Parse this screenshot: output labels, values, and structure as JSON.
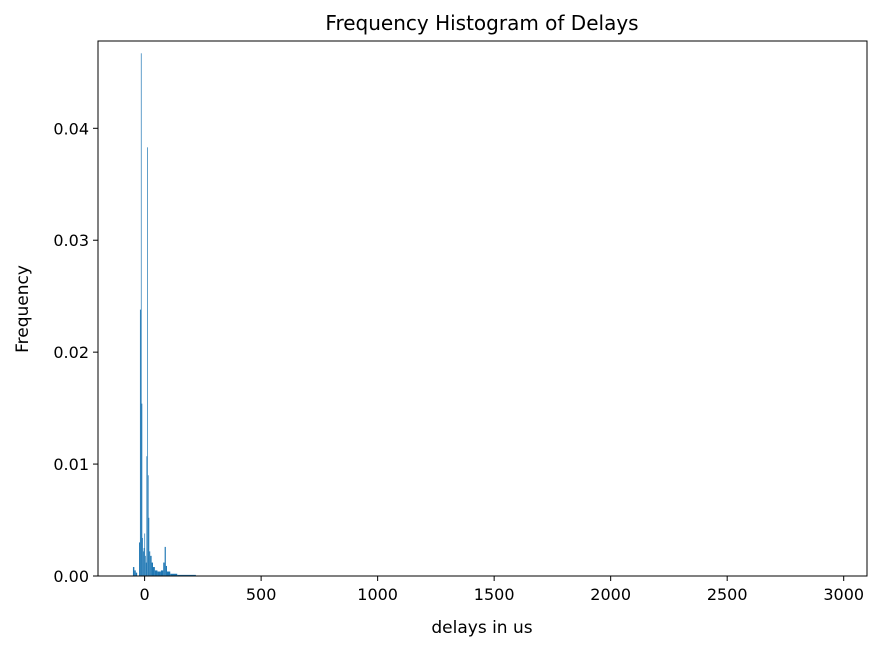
{
  "chart_data": {
    "type": "bar",
    "title": "Frequency Histogram of Delays",
    "xlabel": "delays in us",
    "ylabel": "Frequency",
    "xlim": [
      -200,
      3100
    ],
    "ylim": [
      0,
      0.0478
    ],
    "x_ticks": [
      0,
      500,
      1000,
      1500,
      2000,
      2500,
      3000
    ],
    "x_tick_labels": [
      "0",
      "500",
      "1000",
      "1500",
      "2000",
      "2500",
      "3000"
    ],
    "y_ticks": [
      0.0,
      0.01,
      0.02,
      0.03,
      0.04
    ],
    "y_tick_labels": [
      "0.00",
      "0.01",
      "0.02",
      "0.03",
      "0.04"
    ],
    "grid": false,
    "bar_color": "#1f77b4",
    "bins": [
      {
        "x0": -50,
        "x1": -44,
        "value": 0.0008
      },
      {
        "x0": -44,
        "x1": -38,
        "value": 0.0005
      },
      {
        "x0": -38,
        "x1": -32,
        "value": 0.0003
      },
      {
        "x0": -24,
        "x1": -20,
        "value": 0.003
      },
      {
        "x0": -20,
        "x1": -16,
        "value": 0.0238
      },
      {
        "x0": -16,
        "x1": -13,
        "value": 0.0467
      },
      {
        "x0": -13,
        "x1": -10,
        "value": 0.0154
      },
      {
        "x0": -10,
        "x1": -7,
        "value": 0.0034
      },
      {
        "x0": -7,
        "x1": -4,
        "value": 0.0022
      },
      {
        "x0": -4,
        "x1": -1,
        "value": 0.0025
      },
      {
        "x0": -1,
        "x1": 2,
        "value": 0.0038
      },
      {
        "x0": 2,
        "x1": 5,
        "value": 0.0018
      },
      {
        "x0": 5,
        "x1": 8,
        "value": 0.0012
      },
      {
        "x0": 8,
        "x1": 11,
        "value": 0.0107
      },
      {
        "x0": 11,
        "x1": 14,
        "value": 0.0383
      },
      {
        "x0": 14,
        "x1": 17,
        "value": 0.009
      },
      {
        "x0": 17,
        "x1": 20,
        "value": 0.0052
      },
      {
        "x0": 20,
        "x1": 24,
        "value": 0.0022
      },
      {
        "x0": 24,
        "x1": 30,
        "value": 0.0018
      },
      {
        "x0": 30,
        "x1": 36,
        "value": 0.0012
      },
      {
        "x0": 36,
        "x1": 44,
        "value": 0.0008
      },
      {
        "x0": 44,
        "x1": 55,
        "value": 0.0005
      },
      {
        "x0": 55,
        "x1": 70,
        "value": 0.0004
      },
      {
        "x0": 70,
        "x1": 80,
        "value": 0.0005
      },
      {
        "x0": 80,
        "x1": 86,
        "value": 0.0012
      },
      {
        "x0": 86,
        "x1": 91,
        "value": 0.0026
      },
      {
        "x0": 91,
        "x1": 96,
        "value": 0.0009
      },
      {
        "x0": 96,
        "x1": 110,
        "value": 0.0004
      },
      {
        "x0": 110,
        "x1": 140,
        "value": 0.0002
      },
      {
        "x0": 140,
        "x1": 220,
        "value": 0.0001
      }
    ]
  }
}
